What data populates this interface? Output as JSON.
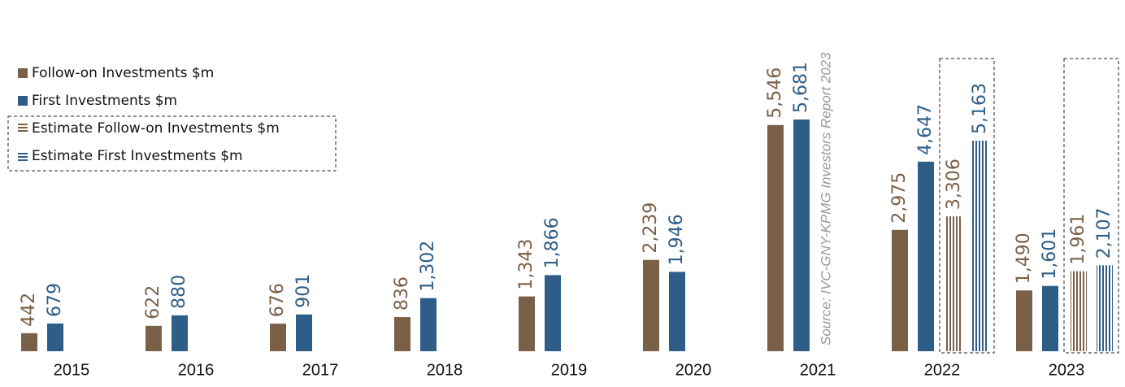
{
  "chart_data": {
    "type": "bar",
    "source": "Source: IVC-GNY-KPMG Investors Report 2023",
    "categories": [
      "2015",
      "2016",
      "2017",
      "2018",
      "2019",
      "2020",
      "2021",
      "2022",
      "2023"
    ],
    "series": [
      {
        "name": "Follow-on Investments $m",
        "color": "#7b6048",
        "values": [
          442,
          622,
          676,
          836,
          1343,
          2239,
          5546,
          2975,
          1490
        ],
        "value_labels": [
          "442",
          "622",
          "676",
          "836",
          "1,343",
          "2,239",
          "5,546",
          "2,975",
          "1,490"
        ]
      },
      {
        "name": "First Investments $m",
        "color": "#2e5d87",
        "values": [
          679,
          880,
          901,
          1302,
          1866,
          1946,
          5681,
          4647,
          1601
        ],
        "value_labels": [
          "679",
          "880",
          "901",
          "1,302",
          "1,866",
          "1,946",
          "5,681",
          "4,647",
          "1,601"
        ]
      },
      {
        "name": "Estimate Follow-on Investments $m",
        "color": "#7b6048",
        "estimate": true,
        "values": [
          null,
          null,
          null,
          null,
          null,
          null,
          null,
          3306,
          1961
        ],
        "value_labels": [
          null,
          null,
          null,
          null,
          null,
          null,
          null,
          "3,306",
          "1,961"
        ]
      },
      {
        "name": "Estimate First Investments $m",
        "color": "#2e5d87",
        "estimate": true,
        "values": [
          null,
          null,
          null,
          null,
          null,
          null,
          null,
          5163,
          2107
        ],
        "value_labels": [
          null,
          null,
          null,
          null,
          null,
          null,
          null,
          "5,163",
          "2,107"
        ]
      }
    ]
  }
}
